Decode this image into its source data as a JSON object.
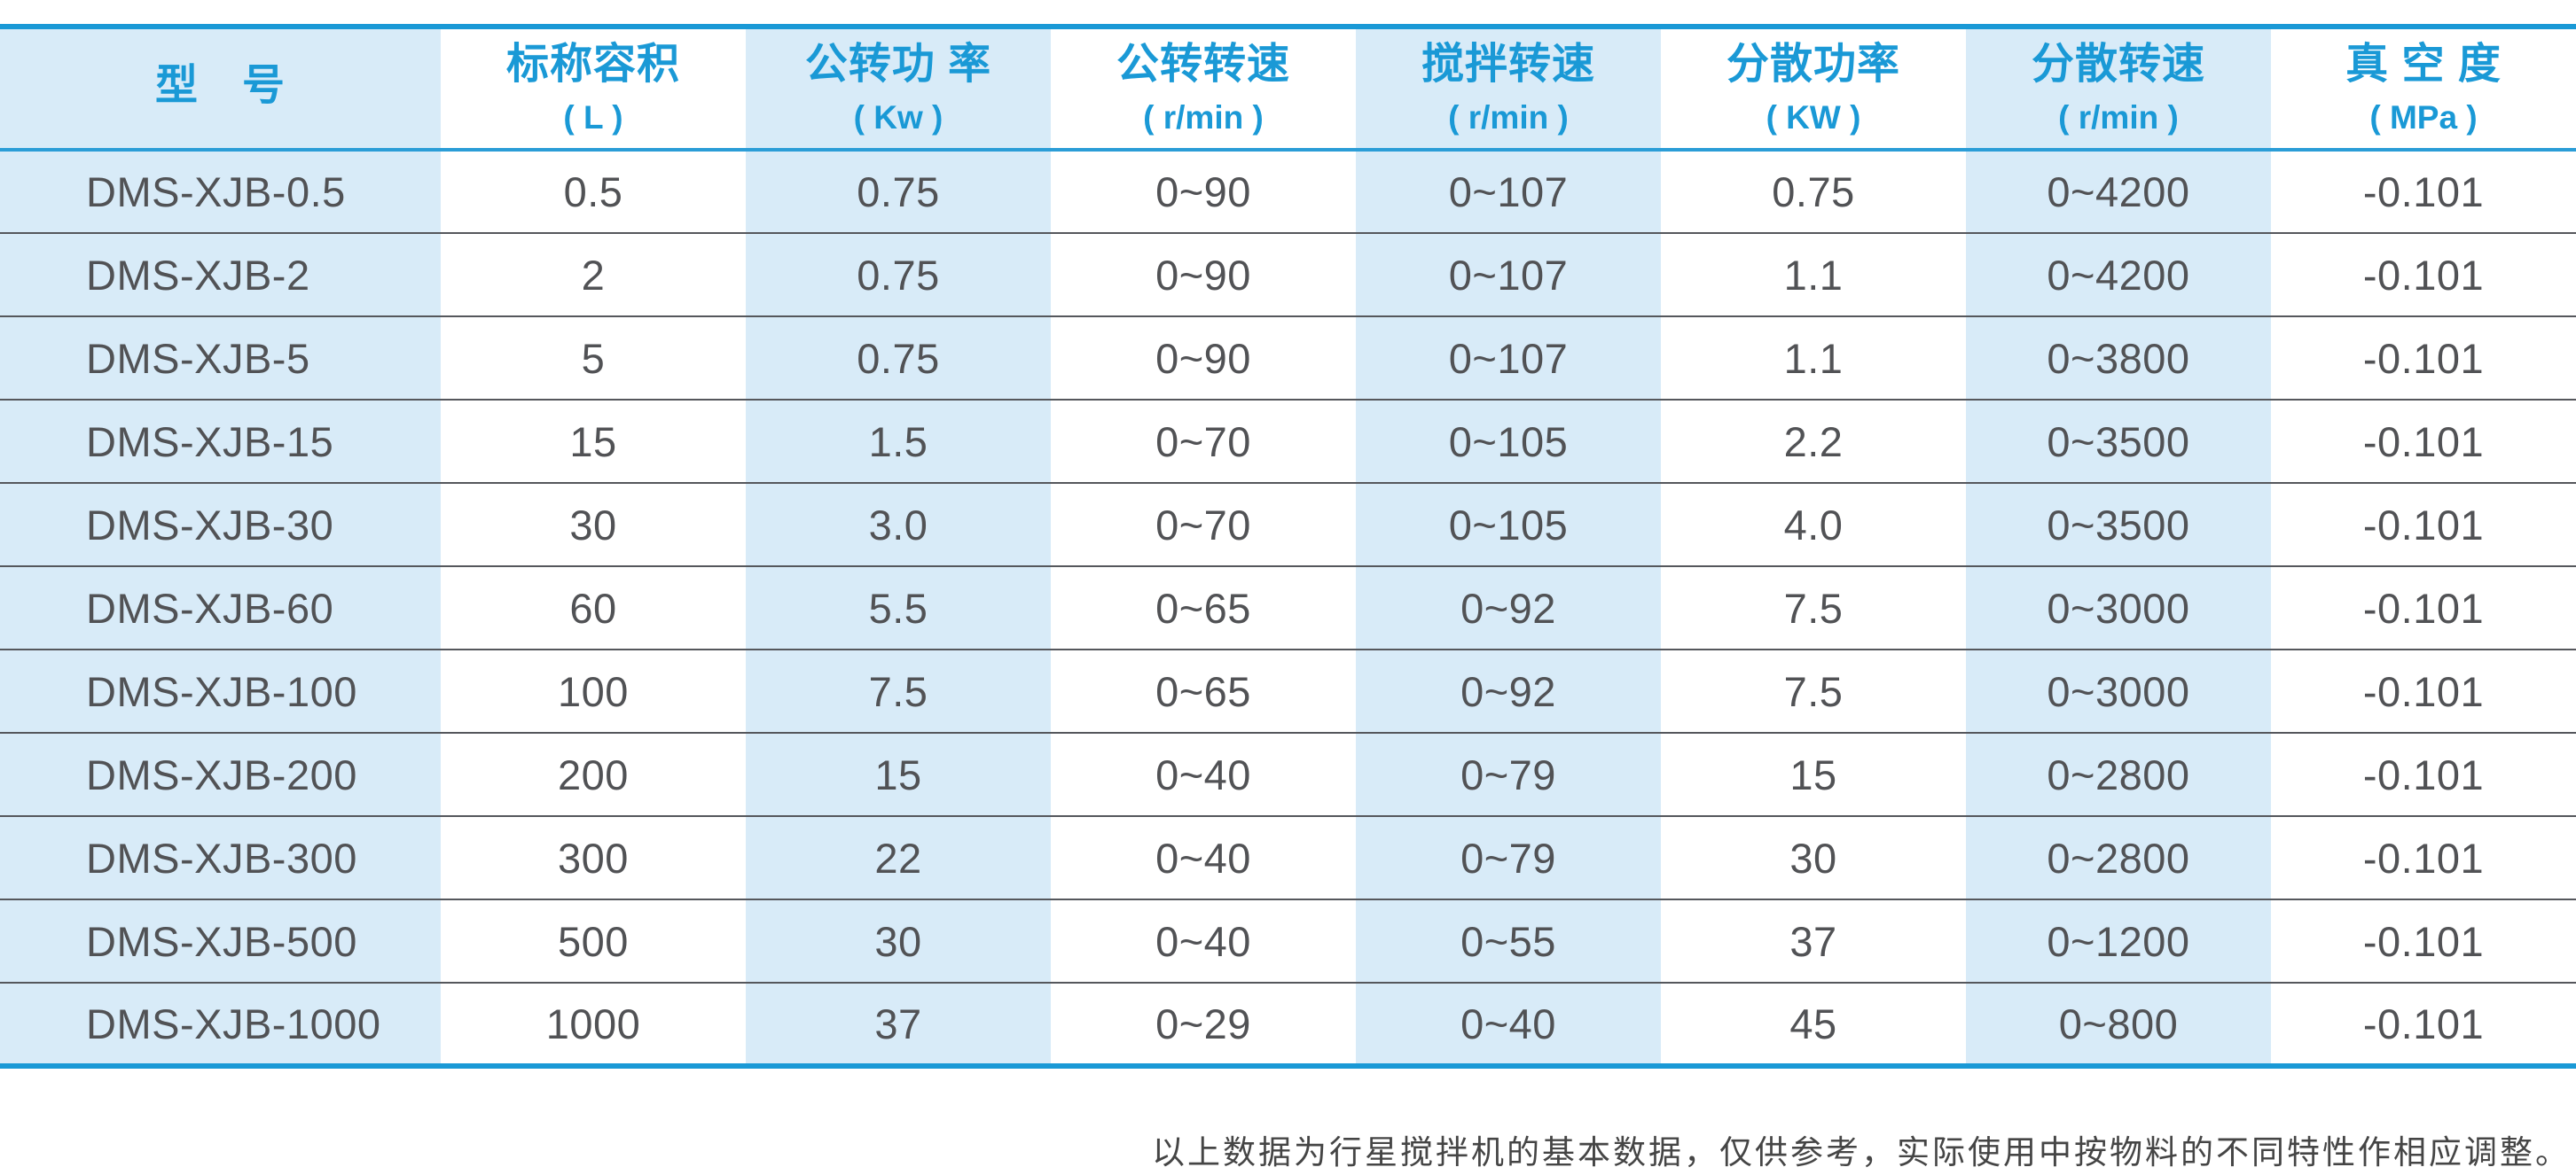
{
  "colors": {
    "accent_blue": "#1a99d6",
    "header_divider_blue": "#2b9dd7",
    "column_stripe_blue": "#d8ebf8",
    "row_divider_gray": "#55575c",
    "body_text": "#515255"
  },
  "table": {
    "columns": [
      {
        "title": "型　号",
        "unit": ""
      },
      {
        "title": "标称容积",
        "unit": "( L )"
      },
      {
        "title": "公转功 率",
        "unit": "( Kw )"
      },
      {
        "title": "公转转速",
        "unit": "( r/min )"
      },
      {
        "title": "搅拌转速",
        "unit": "( r/min )"
      },
      {
        "title": "分散功率",
        "unit": "( KW )"
      },
      {
        "title": "分散转速",
        "unit": "( r/min )"
      },
      {
        "title": "真 空 度",
        "unit": "( MPa )"
      }
    ],
    "rows": [
      {
        "cells": [
          "DMS-XJB-0.5",
          "0.5",
          "0.75",
          "0~90",
          "0~107",
          "0.75",
          "0~4200",
          "-0.101"
        ]
      },
      {
        "cells": [
          "DMS-XJB-2",
          "2",
          "0.75",
          "0~90",
          "0~107",
          "1.1",
          "0~4200",
          "-0.101"
        ]
      },
      {
        "cells": [
          "DMS-XJB-5",
          "5",
          "0.75",
          "0~90",
          "0~107",
          "1.1",
          "0~3800",
          "-0.101"
        ]
      },
      {
        "cells": [
          "DMS-XJB-15",
          "15",
          "1.5",
          "0~70",
          "0~105",
          "2.2",
          "0~3500",
          "-0.101"
        ]
      },
      {
        "cells": [
          "DMS-XJB-30",
          "30",
          "3.0",
          "0~70",
          "0~105",
          "4.0",
          "0~3500",
          "-0.101"
        ]
      },
      {
        "cells": [
          "DMS-XJB-60",
          "60",
          "5.5",
          "0~65",
          "0~92",
          "7.5",
          "0~3000",
          "-0.101"
        ]
      },
      {
        "cells": [
          "DMS-XJB-100",
          "100",
          "7.5",
          "0~65",
          "0~92",
          "7.5",
          "0~3000",
          "-0.101"
        ]
      },
      {
        "cells": [
          "DMS-XJB-200",
          "200",
          "15",
          "0~40",
          "0~79",
          "15",
          "0~2800",
          "-0.101"
        ]
      },
      {
        "cells": [
          "DMS-XJB-300",
          "300",
          "22",
          "0~40",
          "0~79",
          "30",
          "0~2800",
          "-0.101"
        ]
      },
      {
        "cells": [
          "DMS-XJB-500",
          "500",
          "30",
          "0~40",
          "0~55",
          "37",
          "0~1200",
          "-0.101"
        ]
      },
      {
        "cells": [
          "DMS-XJB-1000",
          "1000",
          "37",
          "0~29",
          "0~40",
          "45",
          "0~800",
          "-0.101"
        ]
      }
    ]
  },
  "footnote": "以上数据为行星搅拌机的基本数据，仅供参考，实际使用中按物料的不同特性作相应调整。"
}
